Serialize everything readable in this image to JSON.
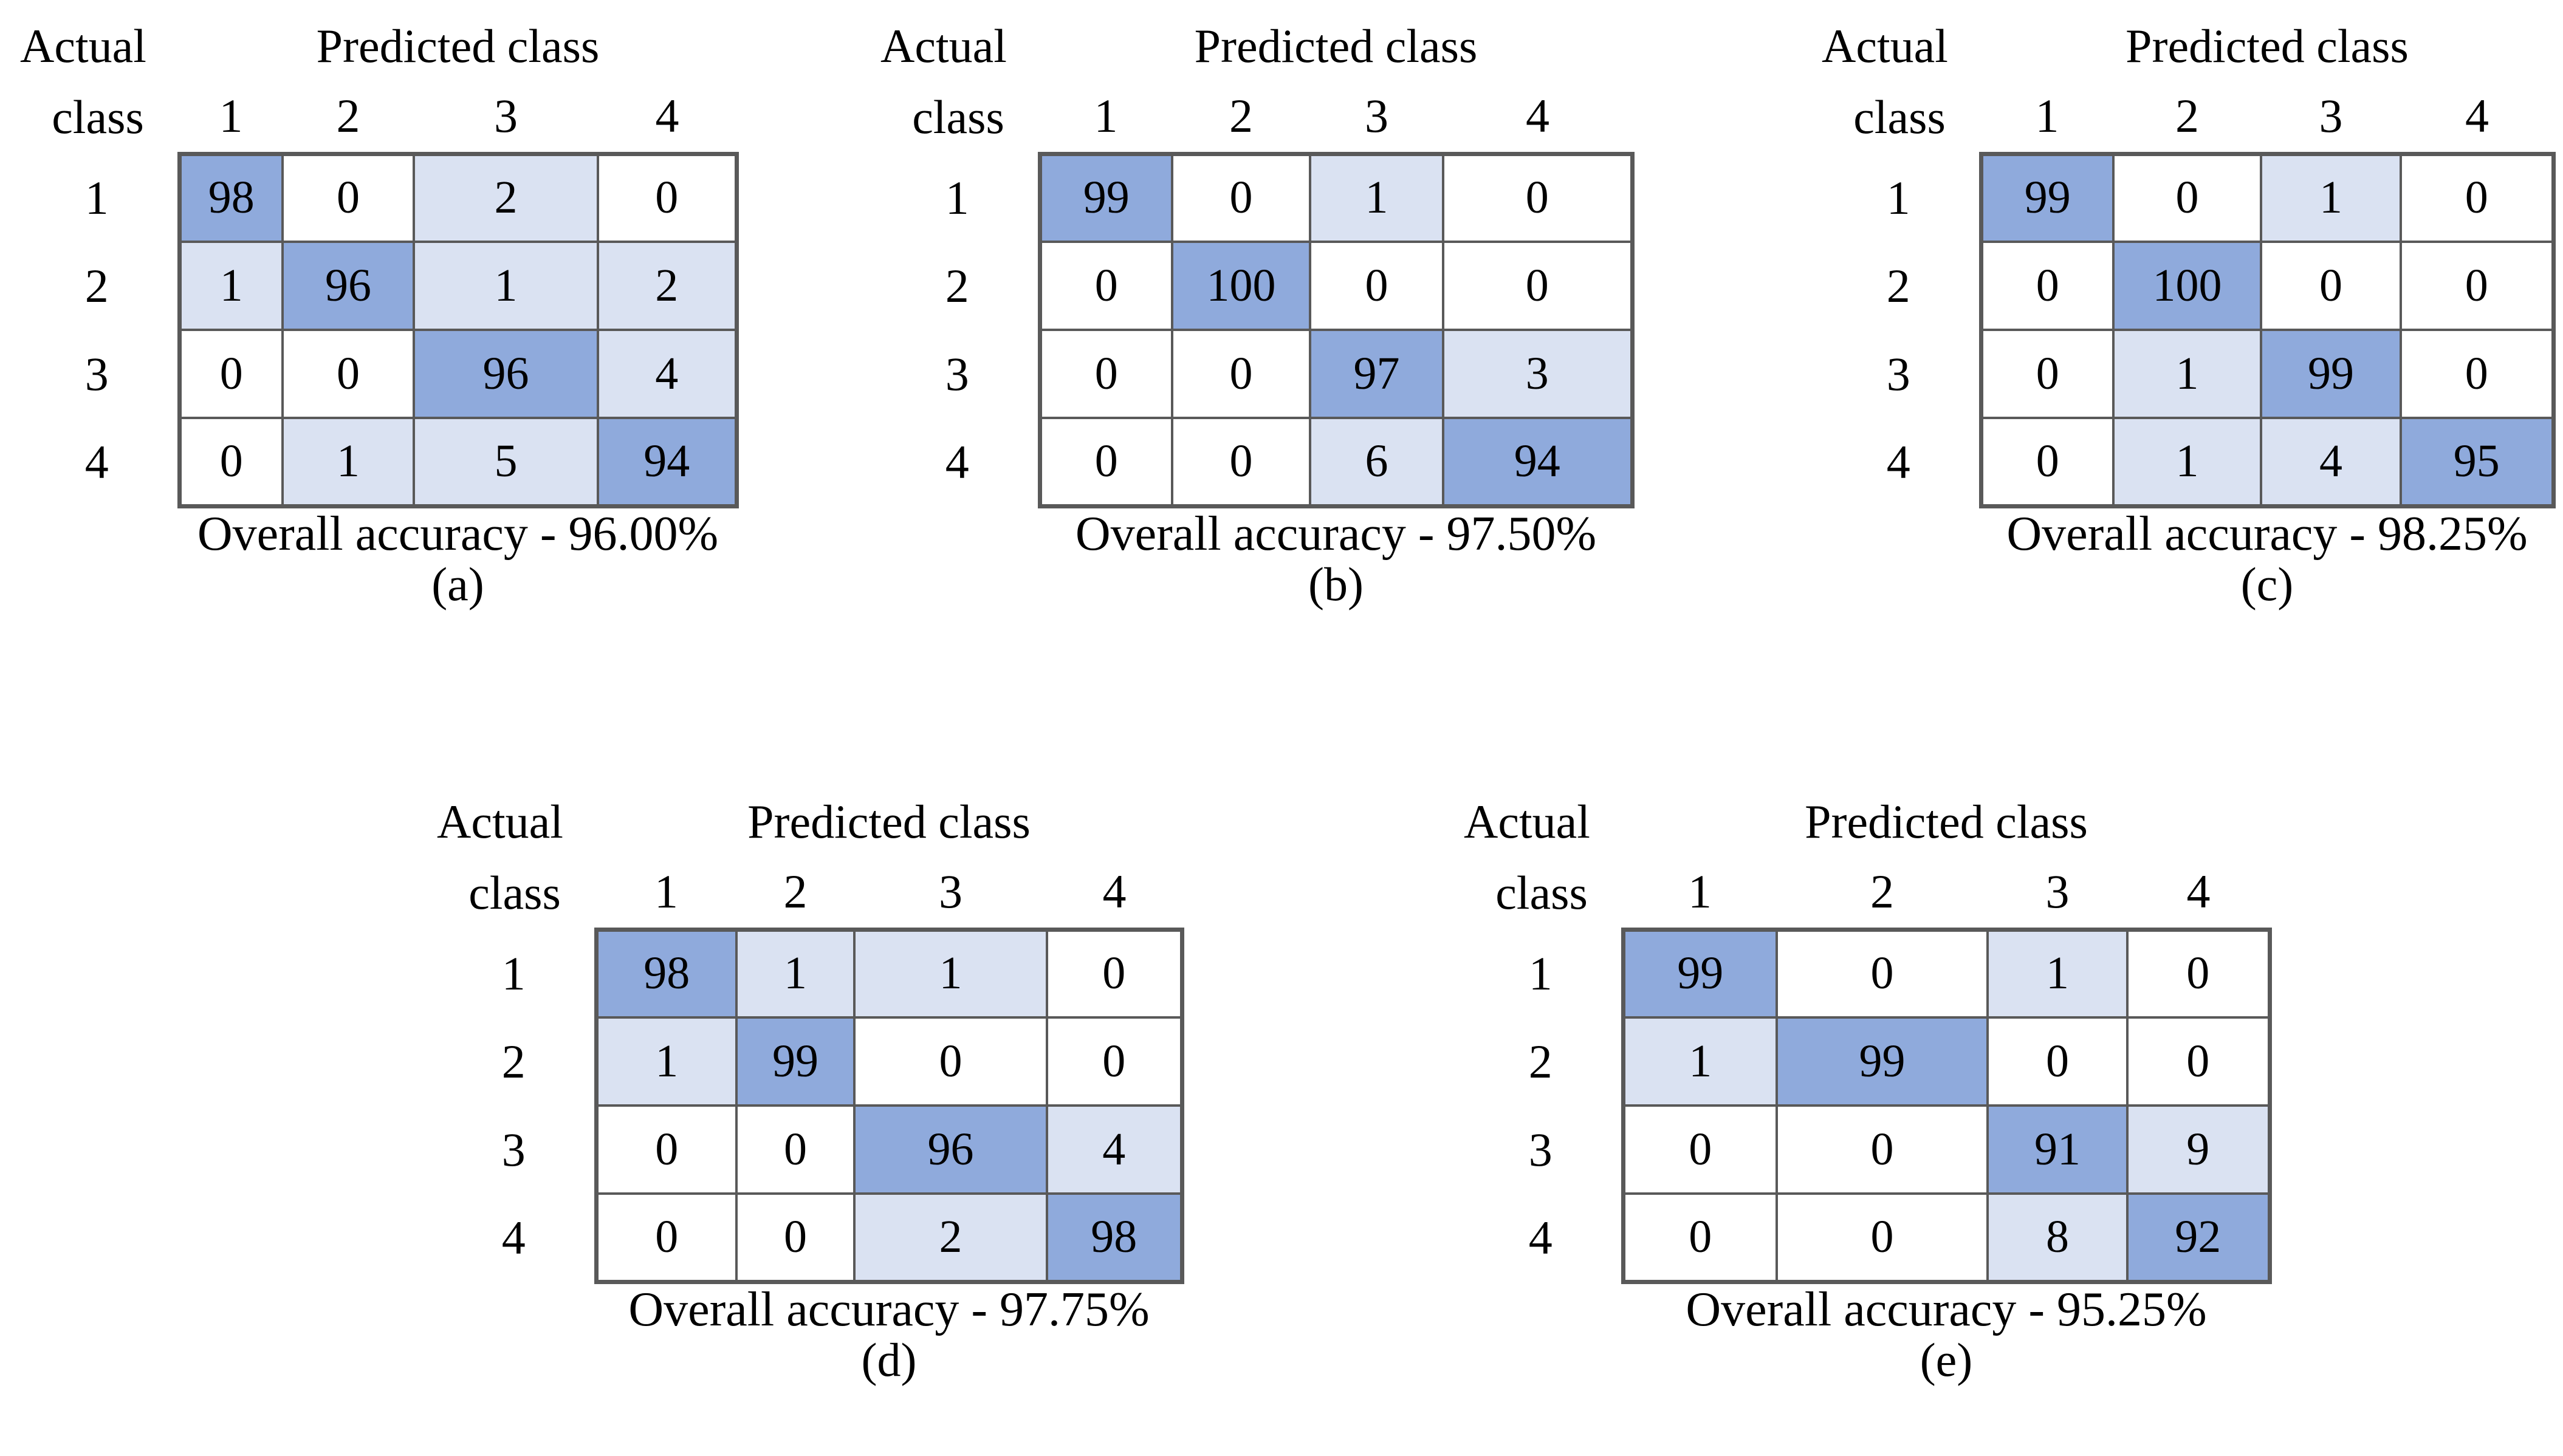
{
  "figure": {
    "actual_label": "Actual",
    "class_label": "class",
    "predicted_label": "Predicted class",
    "classes": [
      "1",
      "2",
      "3",
      "4"
    ]
  },
  "colors": {
    "diagonal_fill": "#8faadc",
    "offdiagonal_fill": "#dae2f2",
    "zero_fill": "#ffffff",
    "grid_border": "#595959",
    "text": "#000000",
    "background": "#ffffff"
  },
  "chart_data": [
    {
      "type": "heatmap",
      "label": "(a)",
      "title": "Predicted class",
      "row_axis": "Actual class",
      "x_categories": [
        "1",
        "2",
        "3",
        "4"
      ],
      "y_categories": [
        "1",
        "2",
        "3",
        "4"
      ],
      "matrix": [
        [
          98,
          0,
          2,
          0
        ],
        [
          1,
          96,
          1,
          2
        ],
        [
          0,
          0,
          96,
          4
        ],
        [
          0,
          1,
          5,
          94
        ]
      ],
      "overall_accuracy": "96.00%",
      "caption": "Overall accuracy - 96.00%"
    },
    {
      "type": "heatmap",
      "label": "(b)",
      "title": "Predicted class",
      "row_axis": "Actual class",
      "x_categories": [
        "1",
        "2",
        "3",
        "4"
      ],
      "y_categories": [
        "1",
        "2",
        "3",
        "4"
      ],
      "matrix": [
        [
          99,
          0,
          1,
          0
        ],
        [
          0,
          100,
          0,
          0
        ],
        [
          0,
          0,
          97,
          3
        ],
        [
          0,
          0,
          6,
          94
        ]
      ],
      "overall_accuracy": "97.50%",
      "caption": "Overall accuracy - 97.50%"
    },
    {
      "type": "heatmap",
      "label": "(c)",
      "title": "Predicted class",
      "row_axis": "Actual class",
      "x_categories": [
        "1",
        "2",
        "3",
        "4"
      ],
      "y_categories": [
        "1",
        "2",
        "3",
        "4"
      ],
      "matrix": [
        [
          99,
          0,
          1,
          0
        ],
        [
          0,
          100,
          0,
          0
        ],
        [
          0,
          1,
          99,
          0
        ],
        [
          0,
          1,
          4,
          95
        ]
      ],
      "overall_accuracy": "98.25%",
      "caption": "Overall accuracy - 98.25%"
    },
    {
      "type": "heatmap",
      "label": "(d)",
      "title": "Predicted class",
      "row_axis": "Actual class",
      "x_categories": [
        "1",
        "2",
        "3",
        "4"
      ],
      "y_categories": [
        "1",
        "2",
        "3",
        "4"
      ],
      "matrix": [
        [
          98,
          1,
          1,
          0
        ],
        [
          1,
          99,
          0,
          0
        ],
        [
          0,
          0,
          96,
          4
        ],
        [
          0,
          0,
          2,
          98
        ]
      ],
      "overall_accuracy": "97.75%",
      "caption": "Overall accuracy - 97.75%"
    },
    {
      "type": "heatmap",
      "label": "(e)",
      "title": "Predicted class",
      "row_axis": "Actual class",
      "x_categories": [
        "1",
        "2",
        "3",
        "4"
      ],
      "y_categories": [
        "1",
        "2",
        "3",
        "4"
      ],
      "matrix": [
        [
          99,
          0,
          1,
          0
        ],
        [
          1,
          99,
          0,
          0
        ],
        [
          0,
          0,
          91,
          9
        ],
        [
          0,
          0,
          8,
          92
        ]
      ],
      "overall_accuracy": "95.25%",
      "caption": "Overall accuracy - 95.25%"
    }
  ]
}
